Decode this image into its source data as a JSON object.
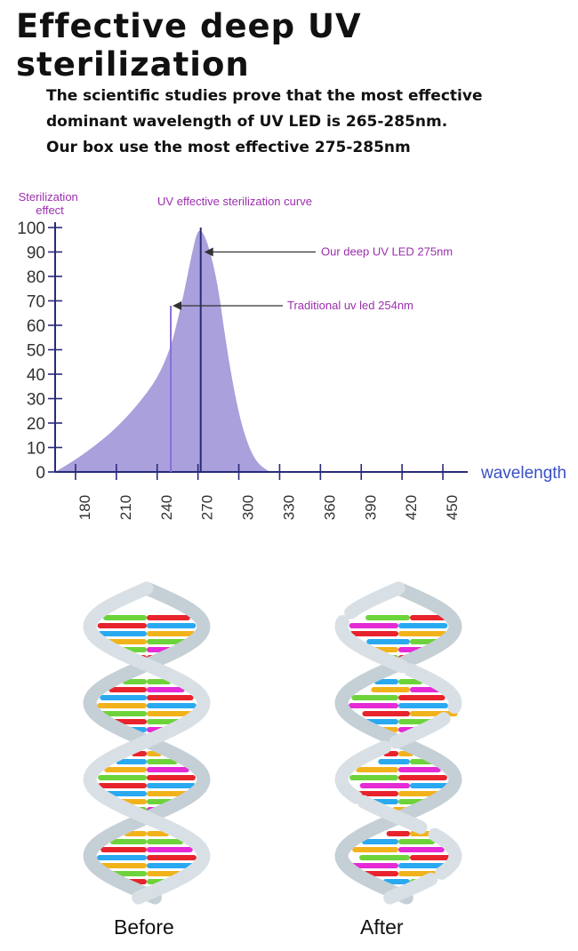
{
  "title": "Effective deep UV sterilization",
  "intro": [
    "The scientific studies prove that the most effective",
    "dominant wavelength of UV LED is 265-285nm.",
    "Our box use the most effective 275-285nm"
  ],
  "chart_data": {
    "type": "area",
    "title": "UV effective sterilization curve",
    "ylabel": "Sterilization effect",
    "xlabel": "wavelength",
    "xlim": [
      165,
      450
    ],
    "ylim": [
      0,
      100
    ],
    "x_ticks": [
      180,
      210,
      240,
      270,
      300,
      330,
      360,
      390,
      420,
      450
    ],
    "y_ticks": [
      0,
      10,
      20,
      30,
      40,
      50,
      60,
      70,
      80,
      90,
      100
    ],
    "grid": false,
    "series": [
      {
        "x": [
          165,
          180,
          195,
          210,
          225,
          240,
          250,
          255,
          260,
          265,
          270,
          275,
          280,
          285,
          290,
          295,
          300,
          305,
          310,
          315,
          320,
          323
        ],
        "y": [
          0,
          5,
          11,
          18,
          27,
          38,
          51,
          62,
          74,
          88,
          100,
          97,
          88,
          75,
          55,
          38,
          24,
          14,
          7,
          3,
          1,
          0
        ]
      }
    ],
    "annotations": [
      {
        "text": "Our deep UV LED 275nm",
        "x": 272,
        "y": 90
      },
      {
        "text": "Traditional uv led 254nm",
        "x": 250,
        "y": 68
      }
    ],
    "fill_color": "#a9a0dc",
    "line_color": "#2a2a7a",
    "label_color": "#9b2fae",
    "wavelength_color": "#3a4fc7"
  },
  "dna": {
    "before_label": "Before",
    "after_label": "After",
    "base_colors": [
      "#e8232d",
      "#29a9f0",
      "#f2b21a",
      "#6dd33a",
      "#e52ad6"
    ],
    "backbone_color": "#c5cfd6"
  }
}
